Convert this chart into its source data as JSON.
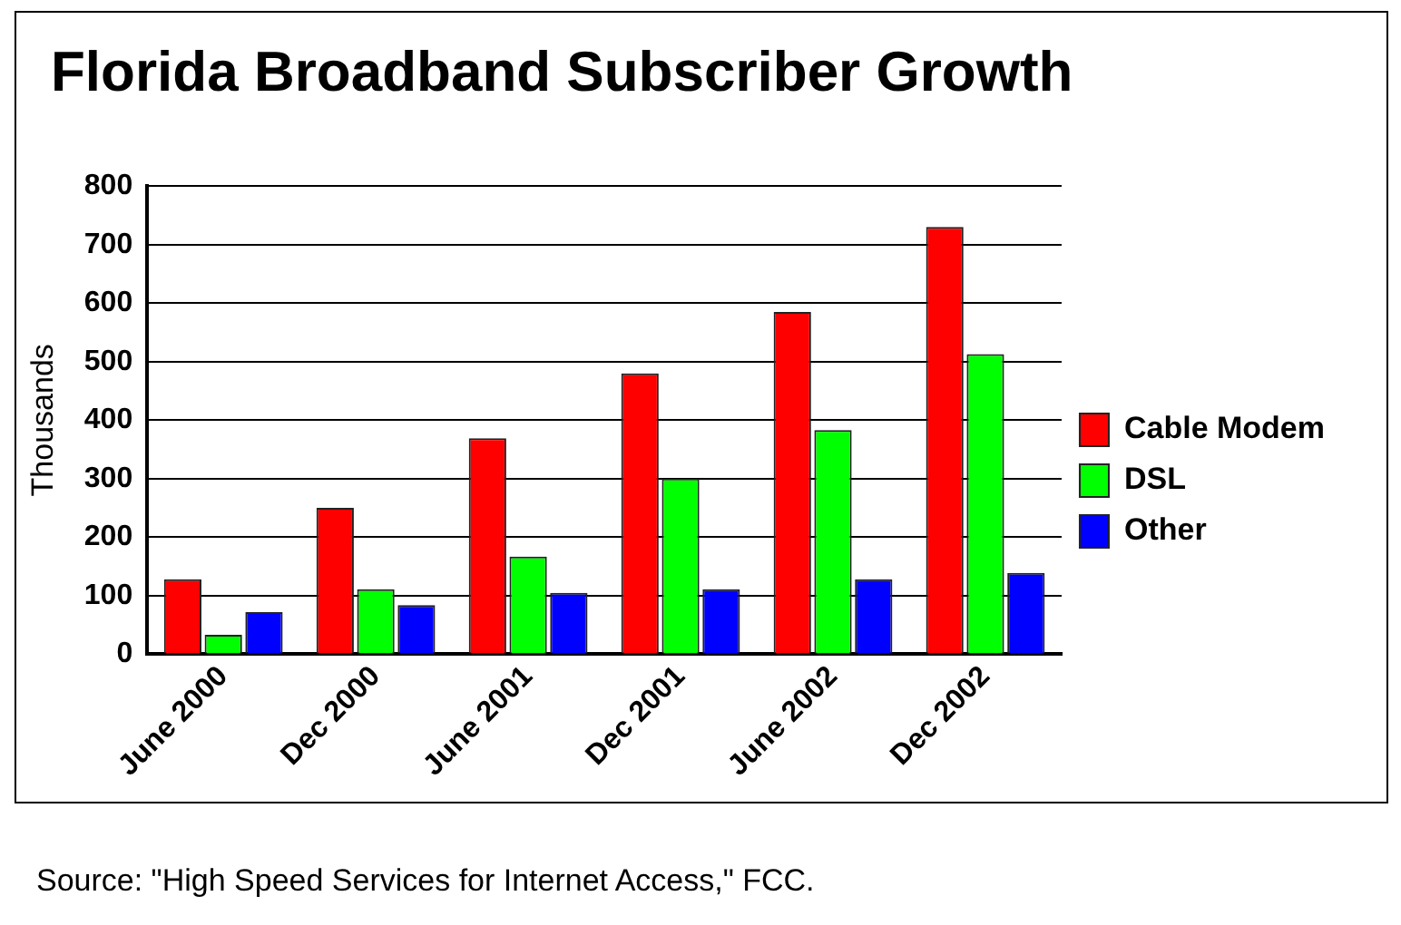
{
  "chart_data": {
    "type": "bar",
    "title": "Florida Broadband Subscriber Growth",
    "ylabel": "Thousands",
    "categories": [
      "June 2000",
      "Dec 2000",
      "June 2001",
      "Dec 2001",
      "June 2002",
      "Dec 2002"
    ],
    "series": [
      {
        "name": "Cable Modem",
        "color": "#ff0000",
        "values": [
          128,
          250,
          369,
          480,
          585,
          730
        ]
      },
      {
        "name": "DSL",
        "color": "#00ff00",
        "values": [
          33,
          111,
          167,
          300,
          383,
          513
        ]
      },
      {
        "name": "Other",
        "color": "#0000ff",
        "values": [
          72,
          84,
          105,
          111,
          128,
          139
        ]
      }
    ],
    "ylim": [
      0,
      800
    ],
    "yticks": [
      0,
      100,
      200,
      300,
      400,
      500,
      600,
      700,
      800
    ],
    "grid": "y",
    "legend": "right",
    "annotations": [
      "Source: \"High Speed Services for Internet Access,\" FCC."
    ]
  }
}
